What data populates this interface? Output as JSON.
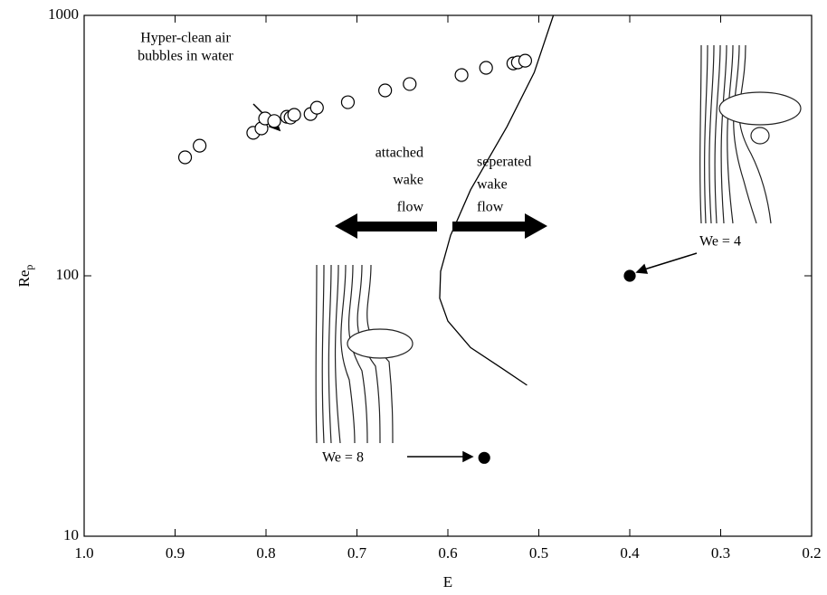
{
  "chart_data": {
    "type": "scatter",
    "xlabel": "E",
    "ylabel": {
      "text": "Re",
      "subscript": "p"
    },
    "xlim": [
      1.0,
      0.2
    ],
    "xticks": [
      {
        "value": 1.0,
        "label": "1.0"
      },
      0.9,
      0.8,
      0.7,
      0.6,
      0.5,
      0.4,
      0.3,
      0.2
    ],
    "ylim": [
      10,
      1000
    ],
    "yticks": [
      10,
      100,
      1000
    ],
    "log_y": true,
    "grid": false,
    "series": [
      {
        "style": "open-circle",
        "color": "#000",
        "x": [
          0.889,
          0.873,
          0.814,
          0.805,
          0.801,
          0.791,
          0.777,
          0.773,
          0.769,
          0.751,
          0.744,
          0.71,
          0.669,
          0.642,
          0.585,
          0.558,
          0.528,
          0.523,
          0.515
        ],
        "values": [
          285,
          316,
          354,
          368,
          402,
          393,
          408,
          405,
          415,
          418,
          442,
          464,
          515,
          545,
          590,
          629,
          654,
          660,
          670
        ]
      },
      {
        "style": "filled-circle",
        "color": "#000",
        "x": [
          0.4,
          0.56
        ],
        "values": [
          100,
          20
        ]
      },
      {
        "style": "line",
        "color": "#000",
        "x": [
          0.484,
          0.505,
          0.535,
          0.575,
          0.597,
          0.608,
          0.609,
          0.6,
          0.575,
          0.54,
          0.513
        ],
        "values": [
          1000,
          604,
          374,
          214,
          143,
          104,
          82,
          67,
          53,
          44,
          38
        ]
      }
    ],
    "annotations": {
      "hyper_clean": [
        "Hyper-clean air",
        "bubbles in water"
      ],
      "attached": [
        "attached",
        "wake",
        "flow"
      ],
      "separated": [
        "seperated",
        "wake",
        "flow"
      ],
      "we4": "We = 4",
      "we8": "We = 8"
    }
  }
}
